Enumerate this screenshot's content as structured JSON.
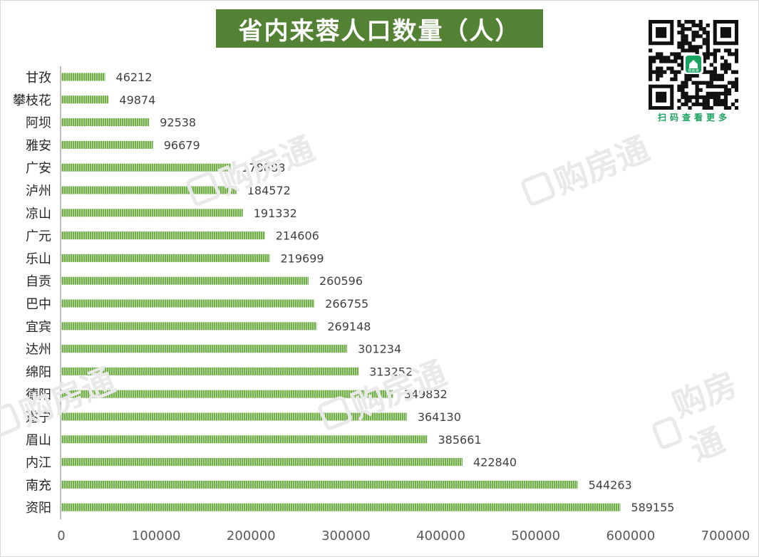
{
  "chart_data": {
    "type": "bar",
    "orientation": "horizontal",
    "title": "省内来蓉人口数量（人）",
    "categories": [
      "甘孜",
      "攀枝花",
      "阿坝",
      "雅安",
      "广安",
      "泸州",
      "凉山",
      "广元",
      "乐山",
      "自贡",
      "巴中",
      "宜宾",
      "达州",
      "绵阳",
      "德阳",
      "遂宁",
      "眉山",
      "内江",
      "南充",
      "资阳"
    ],
    "values": [
      46212,
      49874,
      92538,
      96679,
      178888,
      184572,
      191332,
      214606,
      219699,
      260596,
      266755,
      269148,
      301234,
      313252,
      349832,
      364130,
      385661,
      422840,
      544263,
      589155
    ],
    "xlim": [
      0,
      700000
    ],
    "xticks": [
      0,
      100000,
      200000,
      300000,
      400000,
      500000,
      600000,
      700000
    ],
    "data_labels": true,
    "grid": false,
    "legend": "none",
    "bar_color": "#70ad47"
  },
  "qr": {
    "caption": "扫码查看更多",
    "badge_text": "购房通",
    "icon": "qr-code-icon"
  },
  "watermark": {
    "text": "购房通",
    "icon": "house-logo-icon"
  }
}
